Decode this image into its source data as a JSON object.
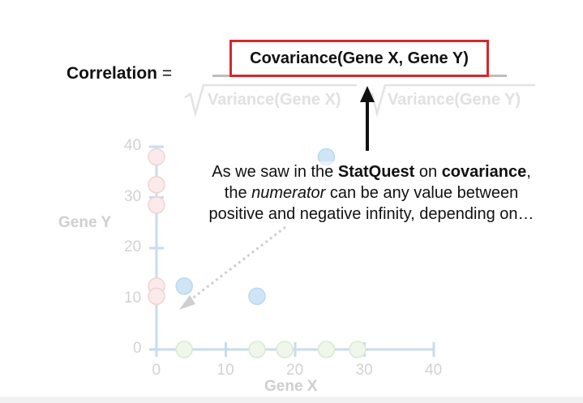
{
  "equation": {
    "lhs_label": "Correlation",
    "equals_sign": "=",
    "numerator": "Covariance(Gene X, Gene Y)",
    "denominator_left": "Variance(Gene X)",
    "denominator_right": "Variance(Gene Y)"
  },
  "callout": {
    "line1_pre": "As we saw in the ",
    "line1_bold1": "StatQuest",
    "line1_mid": " on ",
    "line1_bold2": "covariance",
    "line1_post": ",",
    "line2_pre": "the ",
    "line2_italic": "numerator",
    "line2_post": " can be any value between",
    "line3": "positive and negative infinity, depending on…"
  },
  "colors": {
    "highlight_box": "#d9262b",
    "axis": "#c7dcef",
    "faded_text": "#d2d2d2",
    "point_pink": "#fbeaea",
    "point_blue": "#cfe5f6",
    "point_green": "#eef7ea",
    "arrow": "#111111"
  },
  "chart_data": {
    "type": "scatter",
    "xlabel": "Gene X",
    "ylabel": "Gene Y",
    "xlim": [
      0,
      40
    ],
    "ylim": [
      0,
      40
    ],
    "xticks": [
      "0",
      "10",
      "20",
      "30",
      "40"
    ],
    "yticks": [
      "0",
      "10",
      "20",
      "30",
      "40"
    ],
    "series": [
      {
        "color": "pink",
        "points": [
          [
            0,
            38
          ],
          [
            0,
            32.5
          ],
          [
            0,
            28.5
          ],
          [
            0,
            12.5
          ],
          [
            0,
            10.5
          ]
        ]
      },
      {
        "color": "blue",
        "points": [
          [
            4,
            12.5
          ],
          [
            14.5,
            10.5
          ],
          [
            24.5,
            38
          ]
        ]
      },
      {
        "color": "green",
        "points": [
          [
            4,
            0
          ],
          [
            14.5,
            0
          ],
          [
            18.5,
            0
          ],
          [
            24.5,
            0
          ],
          [
            29,
            0
          ]
        ]
      }
    ]
  }
}
